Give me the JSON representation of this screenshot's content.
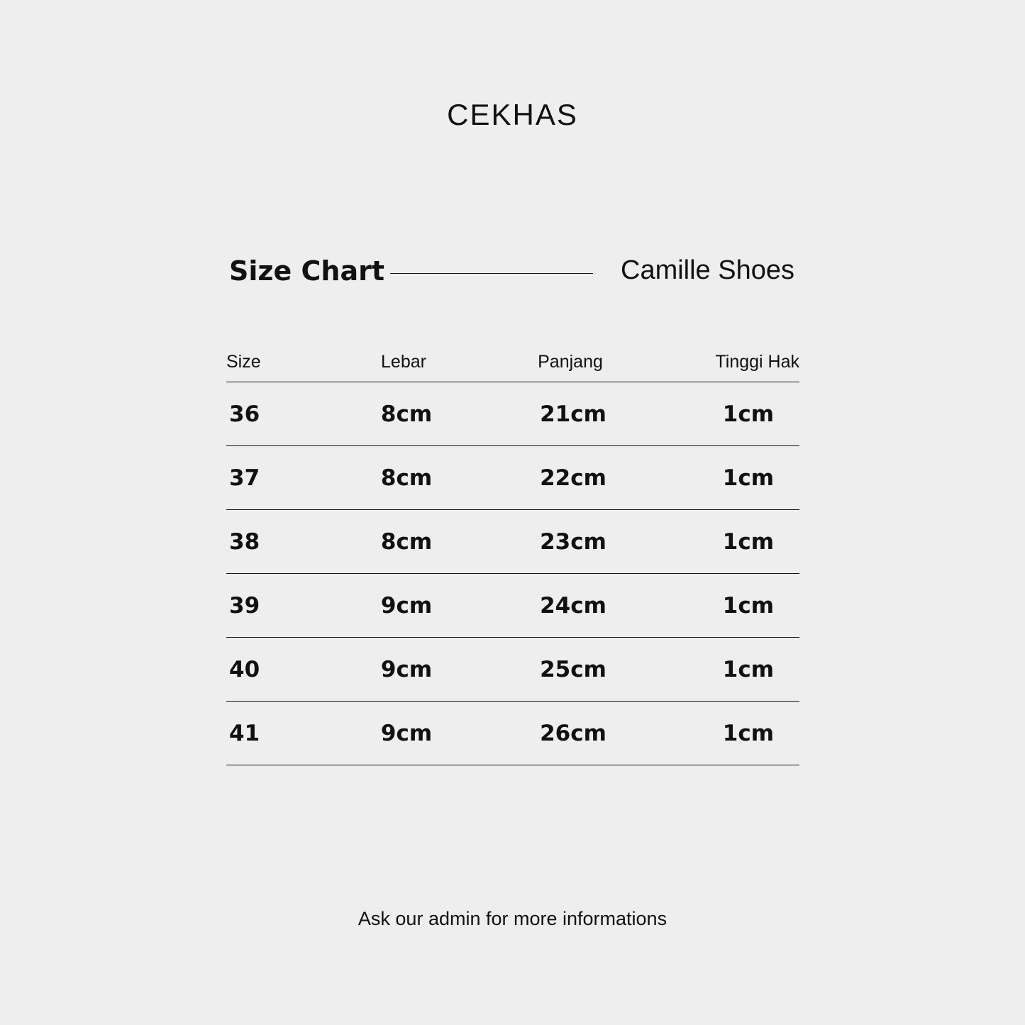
{
  "brand": "CEKHAS",
  "title": "Size Chart",
  "subtitle": "Camille Shoes",
  "table": {
    "headers": [
      "Size",
      "Lebar",
      "Panjang",
      "Tinggi Hak"
    ],
    "rows": [
      [
        "36",
        "8cm",
        "21cm",
        "1cm"
      ],
      [
        "37",
        "8cm",
        "22cm",
        "1cm"
      ],
      [
        "38",
        "8cm",
        "23cm",
        "1cm"
      ],
      [
        "39",
        "9cm",
        "24cm",
        "1cm"
      ],
      [
        "40",
        "9cm",
        "25cm",
        "1cm"
      ],
      [
        "41",
        "9cm",
        "26cm",
        "1cm"
      ]
    ]
  },
  "footer": "Ask our admin for more informations"
}
